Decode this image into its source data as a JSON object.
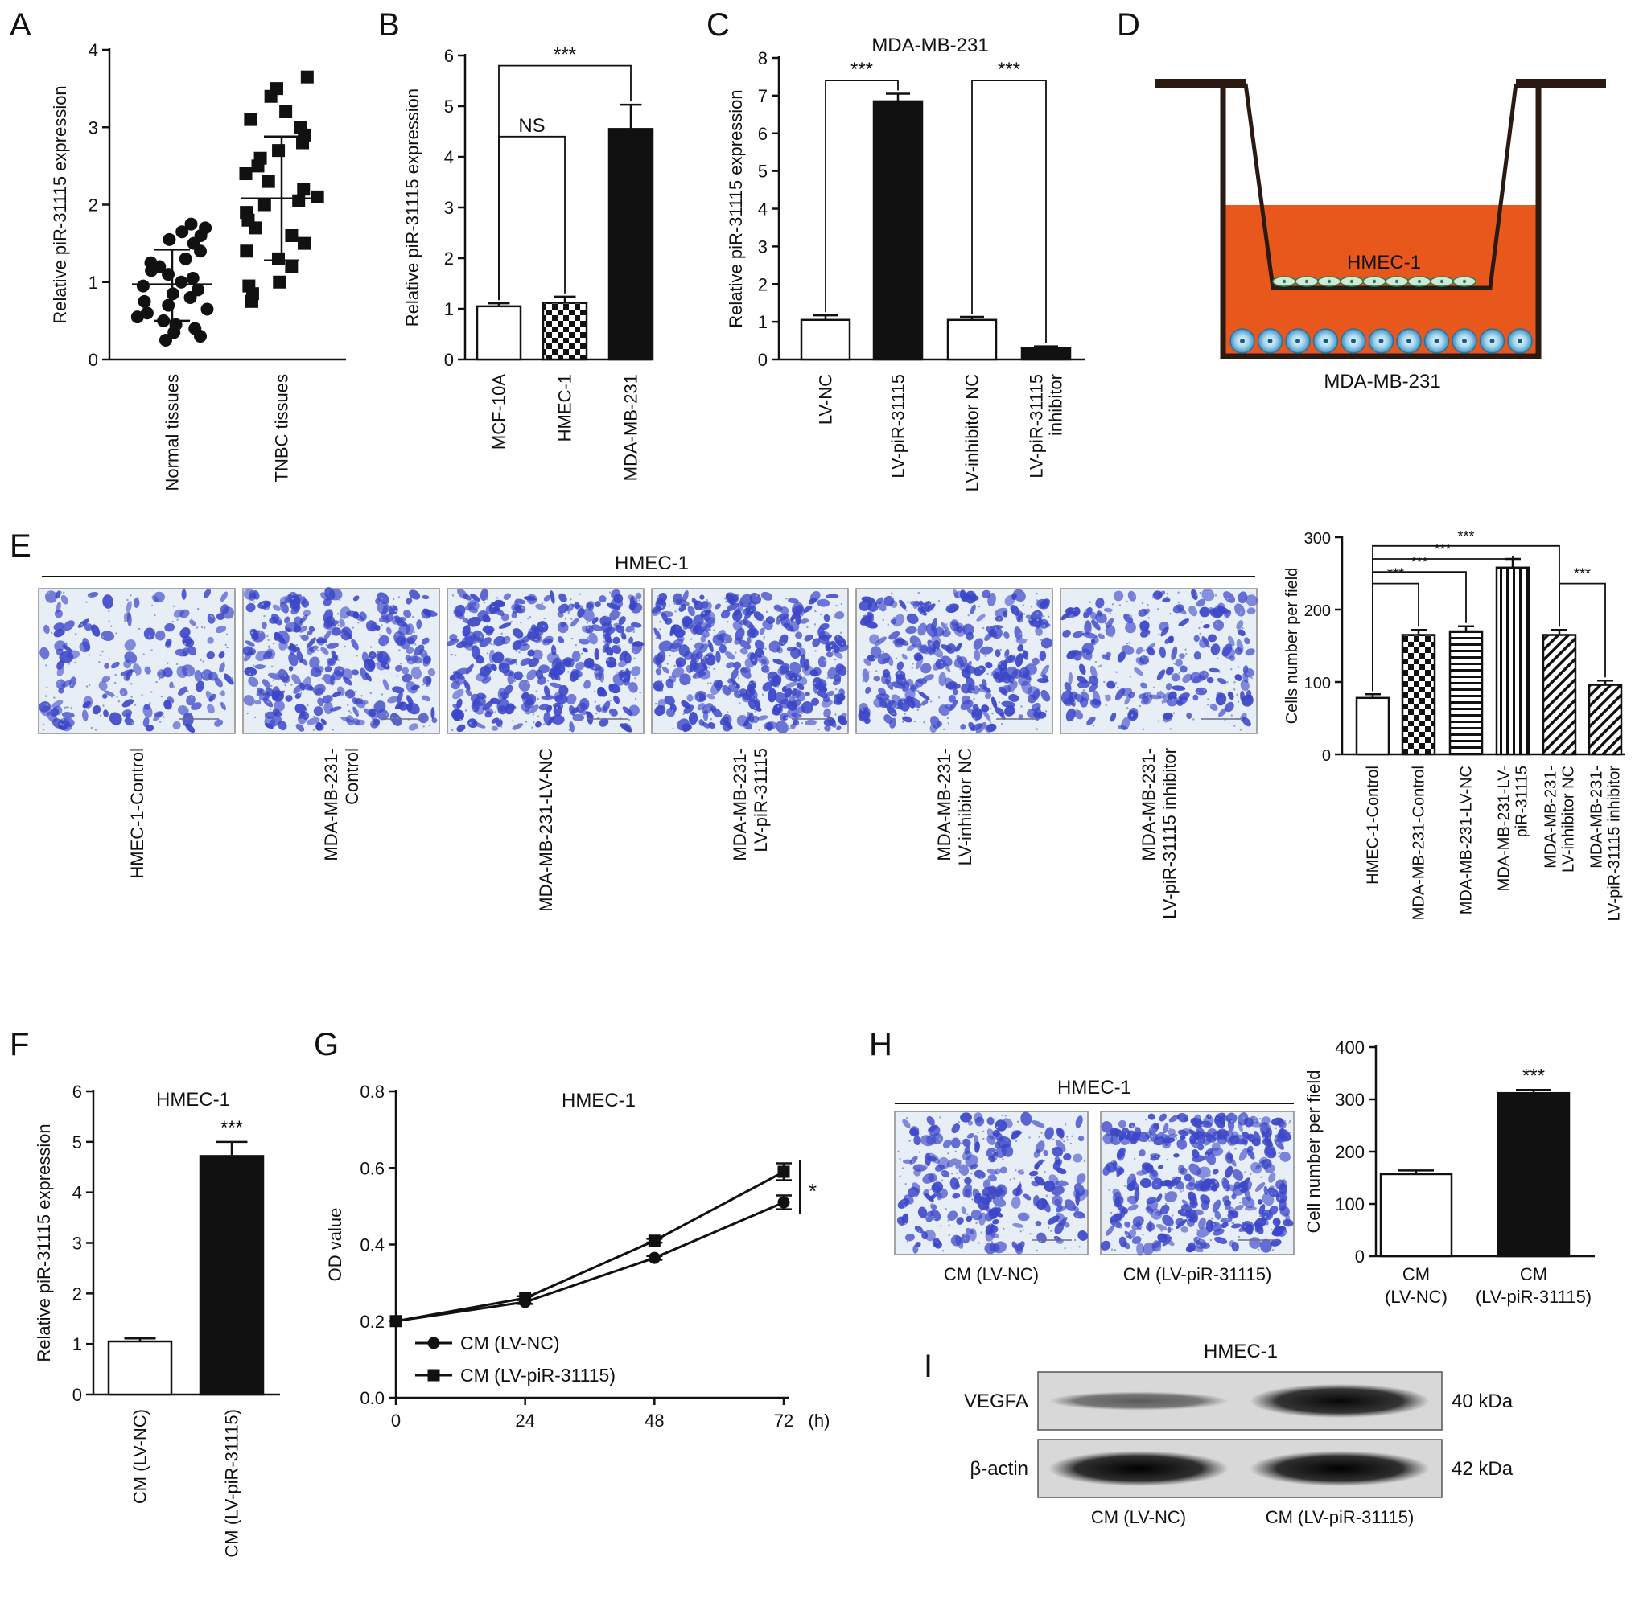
{
  "panel_letters": {
    "A": "A",
    "B": "B",
    "C": "C",
    "D": "D",
    "E": "E",
    "F": "F",
    "G": "G",
    "H": "H",
    "I": "I"
  },
  "colors": {
    "medium": "#e8581c",
    "micrograph_bg": "#e6edf5",
    "stain": "#3b46c8",
    "ink": "#111111"
  },
  "chart_data": [
    {
      "panel": "A",
      "type": "scatter",
      "ylabel": "Relative piR-31115 expression",
      "ylim": [
        0,
        4
      ],
      "yticks": [
        0,
        1,
        2,
        3,
        4
      ],
      "categories": [
        "Normal tissues",
        "TNBC tissues"
      ],
      "series": [
        {
          "values": [
            0.25,
            0.3,
            0.35,
            0.4,
            0.45,
            0.5,
            0.55,
            0.6,
            0.65,
            0.7,
            0.75,
            0.8,
            0.85,
            0.9,
            0.95,
            1.0,
            1.05,
            1.1,
            1.15,
            1.2,
            1.25,
            1.3,
            1.4,
            1.5,
            1.55,
            1.6,
            1.65,
            1.7,
            1.75
          ],
          "mean": 0.97,
          "sd_low": 0.5,
          "sd_high": 1.42
        },
        {
          "values": [
            0.75,
            0.85,
            0.95,
            1.0,
            1.2,
            1.3,
            1.4,
            1.5,
            1.6,
            1.7,
            1.8,
            1.9,
            2.0,
            2.05,
            2.1,
            2.2,
            2.3,
            2.4,
            2.5,
            2.6,
            2.7,
            2.8,
            2.9,
            3.0,
            3.1,
            3.2,
            3.4,
            3.5,
            3.65
          ],
          "mean": 2.08,
          "sd_low": 1.28,
          "sd_high": 2.88
        }
      ]
    },
    {
      "panel": "B",
      "type": "bar",
      "ylabel": "Relative piR-31115 expression",
      "ylim": [
        0,
        6
      ],
      "yticks": [
        0,
        1,
        2,
        3,
        4,
        5,
        6
      ],
      "categories": [
        "MCF-10A",
        "HMEC-1",
        "MDA-MB-231"
      ],
      "values": [
        1.05,
        1.12,
        4.55
      ],
      "errors": [
        0.06,
        0.12,
        0.48
      ],
      "fills": [
        "white",
        "checker",
        "black"
      ],
      "annotations": [
        {
          "from": 0,
          "to": 1,
          "text": "NS",
          "level": 4.4
        },
        {
          "from": 0,
          "to": 2,
          "text": "***",
          "level": 5.8
        }
      ]
    },
    {
      "panel": "C",
      "type": "bar",
      "title": "MDA-MB-231",
      "ylabel": "Relative piR-31115 expression",
      "ylim": [
        0,
        8
      ],
      "yticks": [
        0,
        1,
        2,
        3,
        4,
        5,
        6,
        7,
        8
      ],
      "categories": [
        "LV-NC",
        "LV-piR-31115",
        "LV-inhibitor NC",
        "LV-piR-31115 inhibitor"
      ],
      "category_lines": [
        [
          "LV-NC"
        ],
        [
          "LV-piR-31115"
        ],
        [
          "LV-inhibitor NC"
        ],
        [
          "LV-piR-31115",
          "inhibitor"
        ]
      ],
      "values": [
        1.05,
        6.85,
        1.05,
        0.3
      ],
      "errors": [
        0.12,
        0.2,
        0.08,
        0.05
      ],
      "fills": [
        "white",
        "black",
        "white",
        "black"
      ],
      "annotations": [
        {
          "from": 0,
          "to": 1,
          "text": "***",
          "level": 7.4
        },
        {
          "from": 2,
          "to": 3,
          "text": "***",
          "level": 7.4
        }
      ]
    },
    {
      "panel": "E",
      "type": "bar",
      "ylabel": "Cells number per field",
      "ylim": [
        0,
        300
      ],
      "yticks": [
        0,
        100,
        200,
        300
      ],
      "categories": [
        "HMEC-1-Control",
        "MDA-MB-231-Control",
        "MDA-MB-231-LV-NC",
        "MDA-MB-231-LV-piR-31115",
        "MDA-MB-231-LV-inhibitor NC",
        "MDA-MB-231-LV-piR-31115 inhibitor"
      ],
      "category_lines": [
        [
          "HMEC-1-Control"
        ],
        [
          "MDA-MB-231-Control"
        ],
        [
          "MDA-MB-231-LV-NC"
        ],
        [
          "MDA-MB-231-LV-",
          "piR-31115"
        ],
        [
          "MDA-MB-231-",
          "LV-inhibitor NC"
        ],
        [
          "MDA-MB-231-",
          "LV-piR-31115 inhibitor"
        ]
      ],
      "values": [
        78,
        165,
        170,
        258,
        165,
        96
      ],
      "errors": [
        5,
        7,
        7,
        12,
        7,
        6
      ],
      "fills": [
        "white",
        "checker",
        "hlines",
        "vlines",
        "diag",
        "diag"
      ],
      "annotations": [
        {
          "from": 0,
          "to": 1,
          "text": "***",
          "level": 236
        },
        {
          "from": 0,
          "to": 2,
          "text": "***",
          "level": 252
        },
        {
          "from": 0,
          "to": 3,
          "text": "***",
          "level": 270
        },
        {
          "from": 0,
          "to": 4,
          "text": "***",
          "level": 288
        },
        {
          "from": 4,
          "to": 5,
          "text": "***",
          "level": 236
        }
      ]
    },
    {
      "panel": "F",
      "type": "bar",
      "title": "HMEC-1",
      "ylabel": "Relative piR-31115 expression",
      "ylim": [
        0,
        6
      ],
      "yticks": [
        0,
        1,
        2,
        3,
        4,
        5,
        6
      ],
      "categories": [
        "CM (LV-NC)",
        "CM (LV-piR-31115)"
      ],
      "values": [
        1.05,
        4.72
      ],
      "errors": [
        0.06,
        0.28
      ],
      "fills": [
        "white",
        "black"
      ],
      "annotations": [
        {
          "over": 1,
          "text": "***"
        }
      ]
    },
    {
      "panel": "G",
      "type": "line",
      "title": "HMEC-1",
      "ylabel": "OD value",
      "x": [
        0,
        24,
        48,
        72
      ],
      "xticks": [
        "0",
        "24",
        "48",
        "72"
      ],
      "xunit": "(h)",
      "ylim": [
        0,
        0.8
      ],
      "yticks": [
        "0.0",
        "0.2",
        "0.4",
        "0.6",
        "0.8"
      ],
      "series": [
        {
          "name": "CM (LV-NC)",
          "marker": "circle",
          "values": [
            0.2,
            0.25,
            0.365,
            0.51
          ],
          "errors": [
            0,
            0.005,
            0.005,
            0.018
          ]
        },
        {
          "name": "CM (LV-piR-31115)",
          "marker": "square",
          "values": [
            0.2,
            0.26,
            0.41,
            0.59
          ],
          "errors": [
            0,
            0.005,
            0.005,
            0.022
          ]
        }
      ],
      "significance": "*"
    },
    {
      "panel": "H",
      "type": "bar",
      "ylabel": "Cell number per field",
      "ylim": [
        0,
        400
      ],
      "yticks": [
        0,
        100,
        200,
        300,
        400
      ],
      "categories": [
        "CM (LV-NC)",
        "CM (LV-piR-31115)"
      ],
      "category_lines": [
        [
          "CM",
          "(LV-NC)"
        ],
        [
          "CM",
          "(LV-piR-31115)"
        ]
      ],
      "values": [
        157,
        312
      ],
      "errors": [
        7,
        6
      ],
      "fills": [
        "white",
        "black"
      ],
      "annotations": [
        {
          "over": 1,
          "text": "***"
        }
      ]
    }
  ],
  "panel_d": {
    "top_cells": "HMEC-1",
    "bottom_cells": "MDA-MB-231"
  },
  "panel_e": {
    "header": "HMEC-1",
    "images": [
      {
        "lines": [
          "HMEC-1-Control"
        ],
        "density": 0.35
      },
      {
        "lines": [
          "MDA-MB-231-",
          "Control"
        ],
        "density": 0.8
      },
      {
        "lines": [
          "MDA-MB-231-LV-NC"
        ],
        "density": 0.85
      },
      {
        "lines": [
          "MDA-MB-231-",
          "LV-piR-31115"
        ],
        "density": 1.0
      },
      {
        "lines": [
          "MDA-MB-231-",
          "LV-inhibitor NC"
        ],
        "density": 0.8
      },
      {
        "lines": [
          "MDA-MB-231-",
          "LV-piR-31115 inhibitor"
        ],
        "density": 0.5
      }
    ]
  },
  "panel_h": {
    "header": "HMEC-1",
    "images": [
      {
        "label": "CM (LV-NC)",
        "density": 0.6
      },
      {
        "label": "CM (LV-piR-31115)",
        "density": 1.0
      }
    ]
  },
  "panel_i": {
    "title": "HMEC-1",
    "rows": [
      {
        "name": "VEGFA",
        "size": "40 kDa",
        "intensity": [
          0.35,
          0.95
        ]
      },
      {
        "name": "β-actin",
        "size": "42 kDa",
        "intensity": [
          1.0,
          1.0
        ]
      }
    ],
    "lanes": [
      "CM (LV-NC)",
      "CM (LV-piR-31115)"
    ]
  }
}
